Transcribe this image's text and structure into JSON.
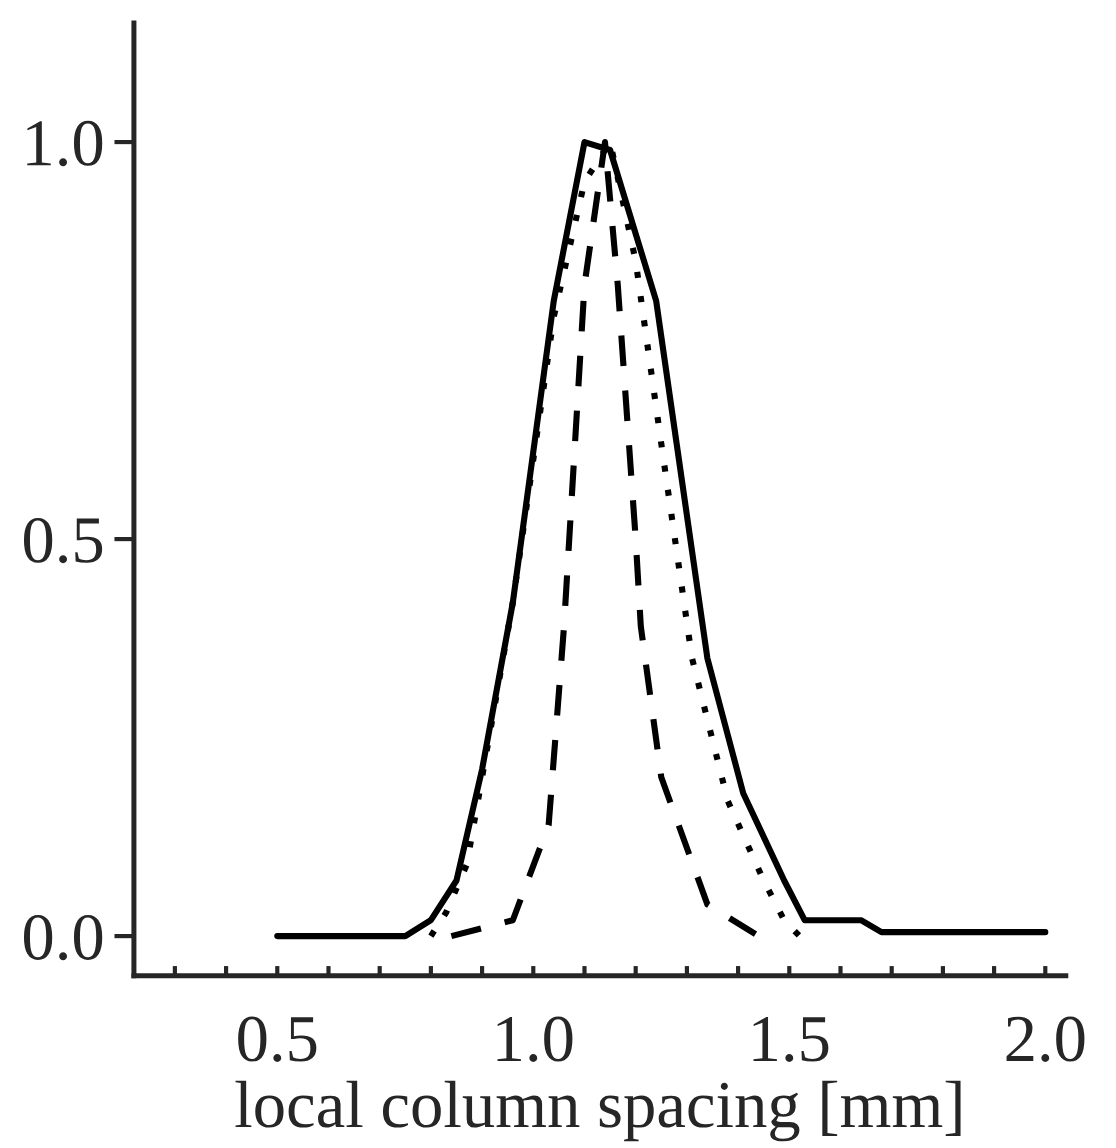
{
  "chart_data": {
    "type": "line",
    "xlabel": "local column spacing [mm]",
    "xlim": [
      0.22,
      2.04
    ],
    "ylim": [
      -0.05,
      1.15
    ],
    "xticks": [
      {
        "value": 0.3,
        "label": null
      },
      {
        "value": 0.4,
        "label": null
      },
      {
        "value": 0.5,
        "label": "0.5"
      },
      {
        "value": 0.6,
        "label": null
      },
      {
        "value": 0.7,
        "label": null
      },
      {
        "value": 0.8,
        "label": null
      },
      {
        "value": 0.9,
        "label": null
      },
      {
        "value": 1.0,
        "label": "1.0"
      },
      {
        "value": 1.1,
        "label": null
      },
      {
        "value": 1.2,
        "label": null
      },
      {
        "value": 1.3,
        "label": null
      },
      {
        "value": 1.4,
        "label": null
      },
      {
        "value": 1.5,
        "label": "1.5"
      },
      {
        "value": 1.6,
        "label": null
      },
      {
        "value": 1.7,
        "label": null
      },
      {
        "value": 1.8,
        "label": null
      },
      {
        "value": 1.9,
        "label": null
      },
      {
        "value": 2.0,
        "label": "2.0"
      }
    ],
    "yticks": [
      {
        "value": 0,
        "label": "0.0"
      },
      {
        "value": 0.5,
        "label": "0.5"
      },
      {
        "value": 1.0,
        "label": "1.0"
      }
    ],
    "grid": false,
    "legend": false,
    "marker": "none",
    "series": [
      {
        "color": "#000000",
        "line_style": "solid",
        "x": [
          0.5,
          0.75,
          0.8,
          0.85,
          0.9,
          0.96,
          1.04,
          1.1,
          1.15,
          1.24,
          1.28,
          1.34,
          1.41,
          1.49,
          1.53,
          1.58,
          1.64,
          1.68,
          2.0
        ],
        "values": [
          0.0,
          0.0,
          0.02,
          0.07,
          0.21,
          0.42,
          0.8,
          1.0,
          0.99,
          0.8,
          0.62,
          0.35,
          0.18,
          0.07,
          0.02,
          0.02,
          0.02,
          0.005,
          0.005
        ]
      },
      {
        "color": "#000000",
        "line_style": "dotted",
        "x": [
          0.8,
          0.83,
          0.87,
          0.9,
          0.96,
          1.04,
          1.1,
          1.15,
          1.2,
          1.25,
          1.31,
          1.38,
          1.45,
          1.49,
          1.52
        ],
        "values": [
          0.0,
          0.03,
          0.09,
          0.2,
          0.42,
          0.78,
          0.95,
          1.0,
          0.85,
          0.62,
          0.35,
          0.17,
          0.07,
          0.02,
          0.0
        ]
      },
      {
        "color": "#000000",
        "line_style": "dashed",
        "x": [
          0.84,
          0.96,
          1.03,
          1.06,
          1.1,
          1.14,
          1.165,
          1.2,
          1.21,
          1.25,
          1.34,
          1.44
        ],
        "values": [
          0.0,
          0.02,
          0.14,
          0.39,
          0.82,
          1.0,
          0.82,
          0.5,
          0.39,
          0.2,
          0.04,
          0.0
        ]
      }
    ]
  }
}
